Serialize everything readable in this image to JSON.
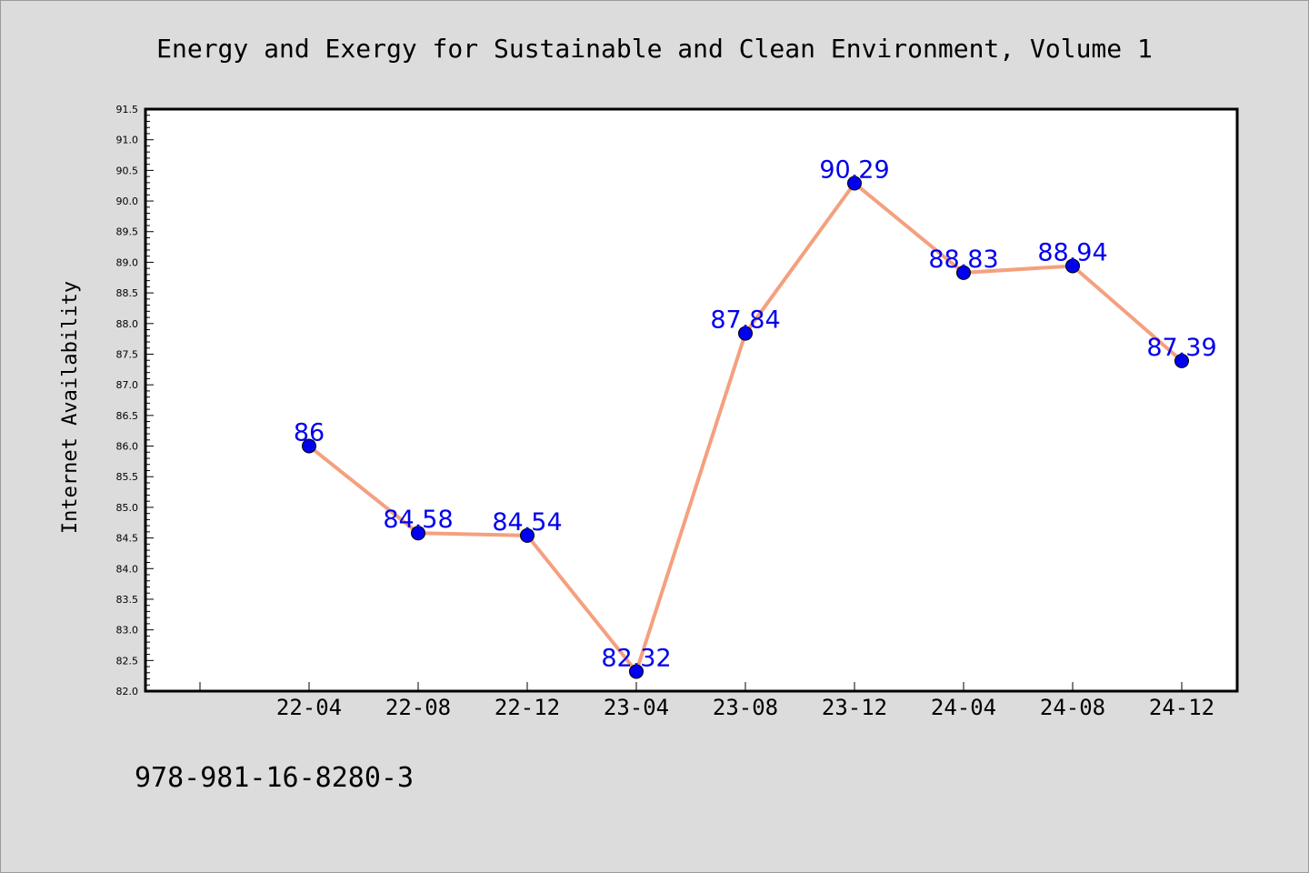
{
  "chart_data": {
    "type": "line",
    "title": "Energy and Exergy for Sustainable and Clean Environment, Volume 1",
    "ylabel": "Internet Availability",
    "xlabel": "",
    "categories": [
      "22-04",
      "22-08",
      "22-12",
      "23-04",
      "23-08",
      "23-12",
      "24-04",
      "24-08",
      "24-12"
    ],
    "series": [
      {
        "values": [
          86,
          84.58,
          84.54,
          82.32,
          87.84,
          90.29,
          88.83,
          88.94,
          87.39
        ],
        "data_labels": [
          "86",
          "84.58",
          "84.54",
          "82.32",
          "87.84",
          "90.29",
          "88.83",
          "88.94",
          "87.39"
        ]
      }
    ],
    "ylim": [
      82.0,
      91.5
    ],
    "y_ticks": [
      "82.0",
      "82.5",
      "83.0",
      "83.5",
      "84.0",
      "84.5",
      "85.0",
      "85.5",
      "86.0",
      "86.5",
      "87.0",
      "87.5",
      "88.0",
      "88.5",
      "89.0",
      "89.5",
      "90.0",
      "90.5",
      "91.0",
      "91.5"
    ],
    "grid": false,
    "legend": "none",
    "colors": {
      "line": "#f4a07f",
      "marker": "#0000ee",
      "label": "#0000ee",
      "background": "#dcdcdc",
      "plot_area": "#ffffff"
    }
  },
  "footer_text": "978-981-16-8280-3"
}
